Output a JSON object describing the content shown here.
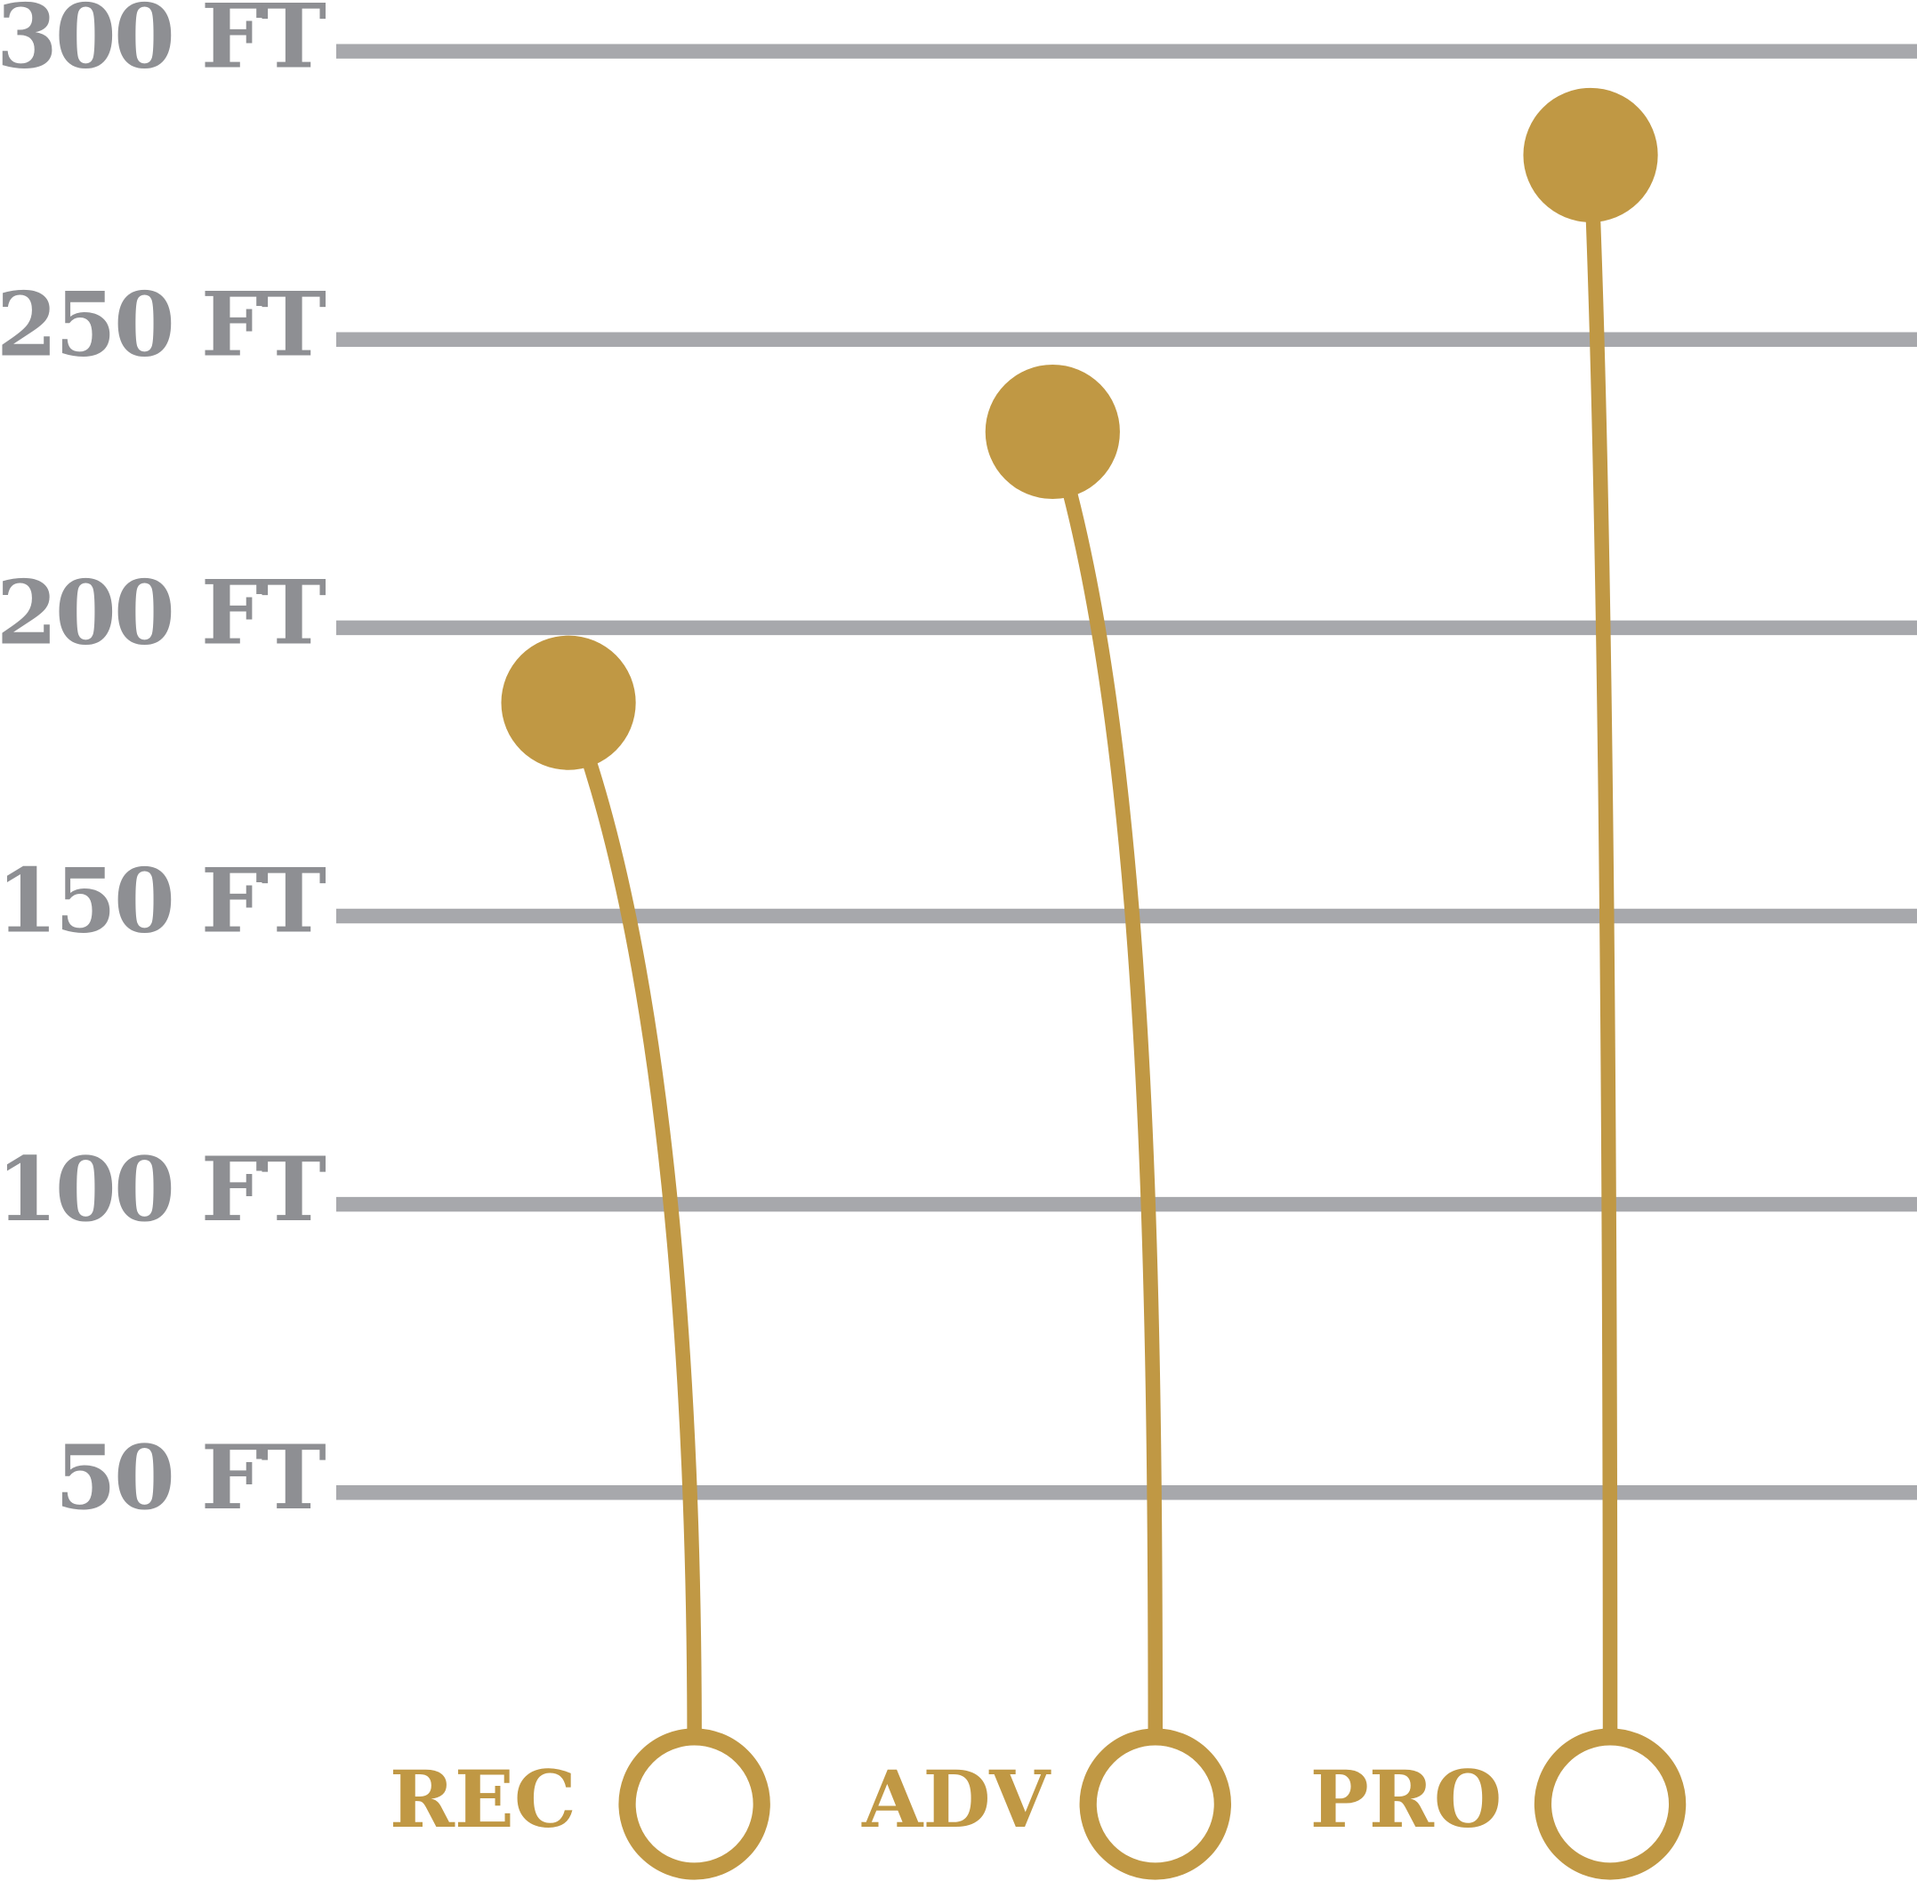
{
  "chart_data": {
    "type": "lollipop",
    "categories": [
      "REC",
      "ADV",
      "PRO"
    ],
    "values": [
      187,
      234,
      282
    ],
    "color": "#c09844",
    "grid_color": "#a7a8ac",
    "tick_color": "#8e8f93",
    "ylim": [
      0,
      300
    ],
    "yticks": [
      {
        "value": 50,
        "label": "50 FT"
      },
      {
        "value": 100,
        "label": "100 FT"
      },
      {
        "value": 150,
        "label": "150 FT"
      },
      {
        "value": 200,
        "label": "200 FT"
      },
      {
        "value": 250,
        "label": "250 FT"
      },
      {
        "value": 300,
        "label": "300 FT"
      }
    ],
    "grid": true
  }
}
